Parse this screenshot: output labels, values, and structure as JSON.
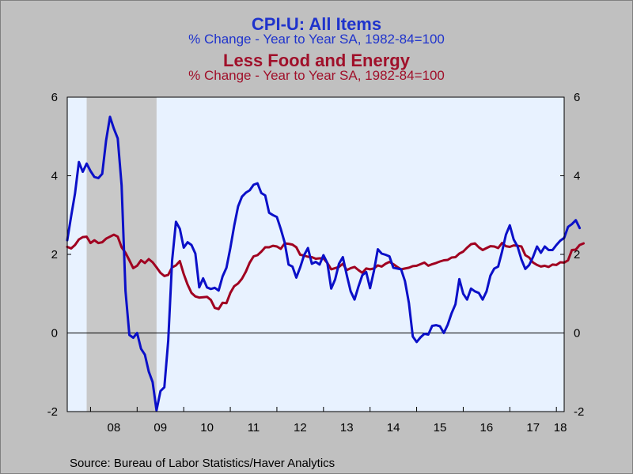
{
  "titles": {
    "title1": "CPI-U: All Items",
    "subtitle1": "% Change - Year to Year    SA, 1982-84=100",
    "title2": "Less Food and Energy",
    "subtitle2": "% Change - Year to Year    SA, 1982-84=100"
  },
  "source": "Source:  Bureau of Labor Statistics/Haver Analytics",
  "colors": {
    "all_items": "#0b10c8",
    "core": "#a00020",
    "recession_shade": "#c8c8c8",
    "plot_bg": "#e8f2ff"
  },
  "chart_data": {
    "type": "line",
    "x_unit": "month",
    "x_start": "2007-07",
    "x_end": "2018-03",
    "xlabel": "",
    "ylabel": "",
    "ylim": [
      -2,
      6
    ],
    "yticks": [
      "-2",
      "0",
      "2",
      "4",
      "6"
    ],
    "xtick_labels": [
      "08",
      "09",
      "10",
      "11",
      "12",
      "13",
      "14",
      "15",
      "16",
      "17",
      "18"
    ],
    "grid": false,
    "zero_line": true,
    "recession": {
      "start": "2007-12",
      "end": "2009-06"
    },
    "series": [
      {
        "name": "CPI-U: All Items",
        "color": "#0b10c8",
        "values": [
          2.36,
          2.97,
          3.55,
          4.35,
          4.1,
          4.31,
          4.12,
          3.97,
          3.94,
          4.05,
          4.9,
          5.5,
          5.2,
          4.95,
          3.75,
          1.07,
          -0.05,
          -0.12,
          0.0,
          -0.4,
          -0.55,
          -0.98,
          -1.25,
          -1.97,
          -1.48,
          -1.38,
          -0.2,
          1.84,
          2.83,
          2.65,
          2.17,
          2.31,
          2.24,
          2.02,
          1.16,
          1.39,
          1.16,
          1.12,
          1.15,
          1.08,
          1.44,
          1.66,
          2.16,
          2.73,
          3.22,
          3.47,
          3.57,
          3.63,
          3.77,
          3.81,
          3.56,
          3.5,
          3.06,
          3.0,
          2.95,
          2.65,
          2.3,
          1.74,
          1.69,
          1.41,
          1.67,
          1.98,
          2.16,
          1.76,
          1.81,
          1.74,
          1.98,
          1.78,
          1.13,
          1.36,
          1.76,
          1.93,
          1.47,
          1.06,
          0.85,
          1.18,
          1.47,
          1.55,
          1.14,
          1.58,
          2.13,
          2.02,
          1.99,
          1.95,
          1.66,
          1.64,
          1.62,
          1.32,
          0.76,
          -0.09,
          -0.23,
          -0.11,
          -0.02,
          -0.04,
          0.18,
          0.2,
          0.17,
          0.0,
          0.21,
          0.5,
          0.73,
          1.37,
          1.0,
          0.85,
          1.13,
          1.06,
          1.02,
          0.85,
          1.06,
          1.46,
          1.64,
          1.69,
          2.07,
          2.5,
          2.74,
          2.38,
          2.2,
          1.87,
          1.63,
          1.73,
          1.94,
          2.2,
          2.04,
          2.2,
          2.11,
          2.11,
          2.24,
          2.35,
          2.42,
          2.7,
          2.77,
          2.87,
          2.67
        ]
      },
      {
        "name": "Less Food and Energy",
        "color": "#a00020",
        "values": [
          2.19,
          2.15,
          2.24,
          2.38,
          2.44,
          2.45,
          2.29,
          2.36,
          2.29,
          2.31,
          2.4,
          2.45,
          2.5,
          2.45,
          2.18,
          2.04,
          1.85,
          1.65,
          1.71,
          1.85,
          1.78,
          1.88,
          1.8,
          1.67,
          1.53,
          1.45,
          1.48,
          1.67,
          1.72,
          1.83,
          1.5,
          1.23,
          1.02,
          0.93,
          0.9,
          0.91,
          0.92,
          0.84,
          0.64,
          0.61,
          0.77,
          0.76,
          1.02,
          1.19,
          1.26,
          1.38,
          1.56,
          1.79,
          1.95,
          1.98,
          2.07,
          2.18,
          2.18,
          2.22,
          2.2,
          2.14,
          2.28,
          2.27,
          2.25,
          2.18,
          1.99,
          1.97,
          1.94,
          1.93,
          1.89,
          1.9,
          1.9,
          1.78,
          1.62,
          1.65,
          1.68,
          1.76,
          1.6,
          1.65,
          1.68,
          1.6,
          1.53,
          1.64,
          1.62,
          1.64,
          1.72,
          1.69,
          1.76,
          1.81,
          1.75,
          1.68,
          1.62,
          1.64,
          1.66,
          1.7,
          1.71,
          1.75,
          1.79,
          1.71,
          1.75,
          1.78,
          1.82,
          1.85,
          1.86,
          1.92,
          1.93,
          2.02,
          2.07,
          2.17,
          2.26,
          2.28,
          2.18,
          2.11,
          2.16,
          2.21,
          2.2,
          2.16,
          2.29,
          2.21,
          2.19,
          2.23,
          2.22,
          2.2,
          1.98,
          1.92,
          1.79,
          1.73,
          1.69,
          1.71,
          1.68,
          1.74,
          1.73,
          1.8,
          1.79,
          1.85,
          2.11,
          2.12,
          2.24,
          2.28
        ]
      }
    ]
  }
}
